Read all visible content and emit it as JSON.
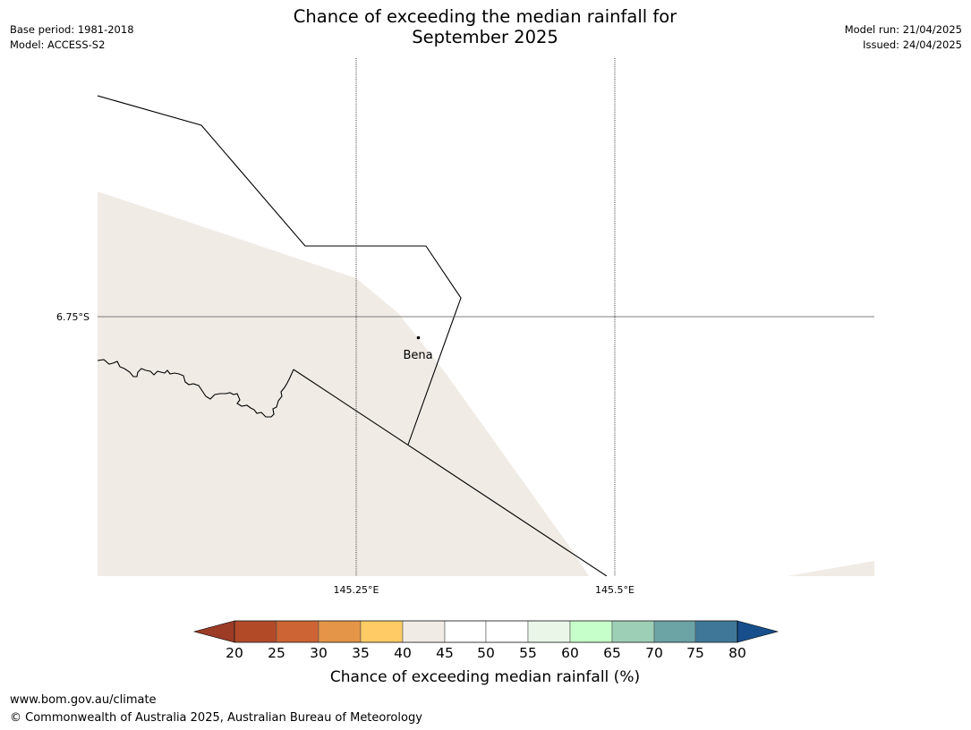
{
  "header": {
    "title_line1": "Chance of exceeding the median rainfall for",
    "title_line2": "September 2025",
    "base_period": "Base period: 1981-2018",
    "model": "Model: ACCESS-S2",
    "model_run": "Model run: 21/04/2025",
    "issued": "Issued: 24/04/2025"
  },
  "map": {
    "latitude_labels": [
      "6.75°S"
    ],
    "longitude_labels": [
      "145.25°E",
      "145.5°E"
    ],
    "place_label": "Bena",
    "shading_colors": {
      "land_class_40_45": "#f0ebe5",
      "land_class_50_55": "#ffffff"
    }
  },
  "legend": {
    "title": "Chance of exceeding median rainfall (%)",
    "tick_labels": [
      "20",
      "25",
      "30",
      "35",
      "40",
      "45",
      "50",
      "55",
      "60",
      "65",
      "70",
      "75",
      "80"
    ],
    "colors": [
      "#9c3c26",
      "#b24a27",
      "#cc6433",
      "#e49547",
      "#fecb65",
      "#f0ebe5",
      "#ffffff",
      "#ffffff",
      "#e9f6e8",
      "#c6ffc9",
      "#9dcfb7",
      "#6ca3a5",
      "#3f7798",
      "#164f8c"
    ]
  },
  "footer": {
    "url": "www.bom.gov.au/climate",
    "copyright": "© Commonwealth of Australia 2025, Australian Bureau of Meteorology"
  }
}
